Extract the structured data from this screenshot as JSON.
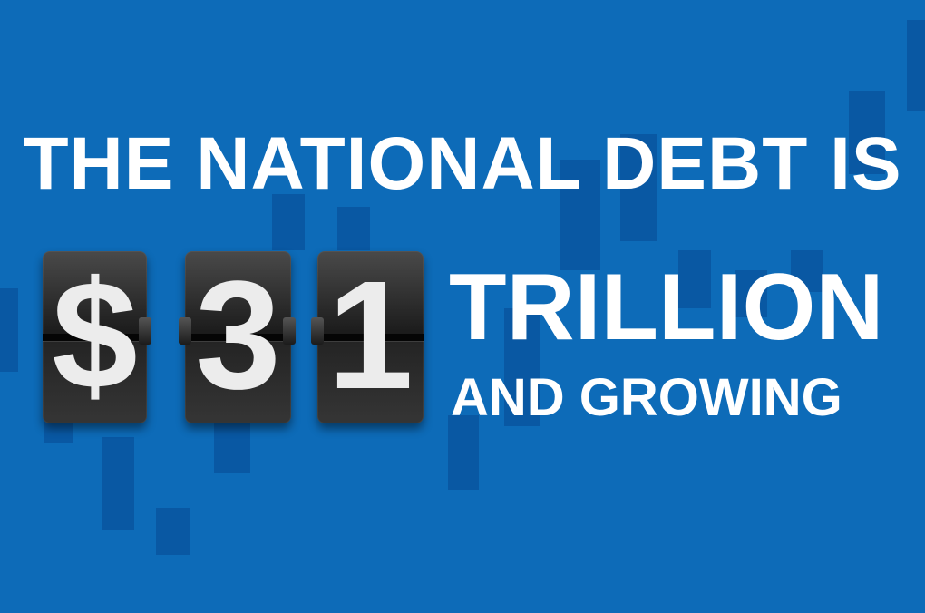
{
  "headline": "THE NATIONAL DEBT IS",
  "flip_digits": [
    "$",
    "3",
    "1"
  ],
  "trillion_label": "TRILLION",
  "growing_label": "AND GROWING",
  "colors": {
    "background": "#0d6bb8",
    "text": "#ffffff",
    "flip_card": "#1a1a1a",
    "flip_digit": "#ececec"
  }
}
